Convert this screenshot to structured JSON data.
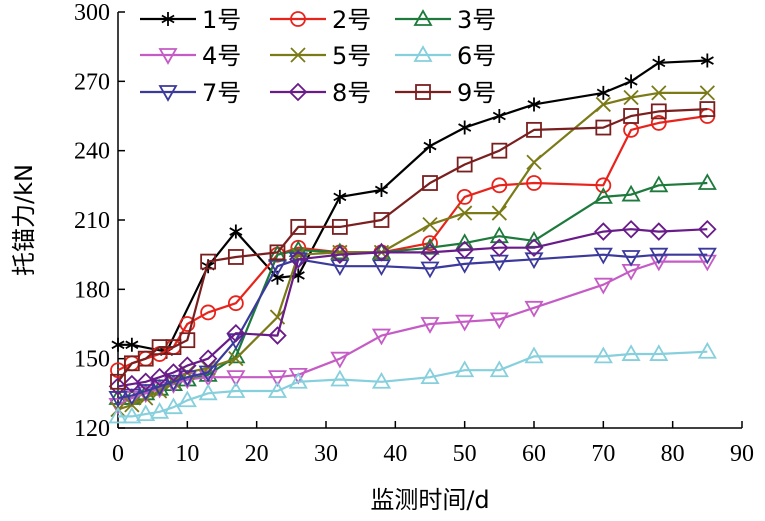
{
  "chart_data": {
    "type": "line",
    "title": "",
    "xlabel": "监测时间/d",
    "ylabel": "托锚力/kN",
    "xlim": [
      0,
      90
    ],
    "ylim": [
      120,
      300
    ],
    "xticks": [
      0,
      10,
      20,
      30,
      40,
      50,
      60,
      70,
      80,
      90
    ],
    "yticks": [
      120,
      150,
      180,
      210,
      240,
      270,
      300
    ],
    "grid": false,
    "legend_position": "top-left",
    "series": [
      {
        "name": "1号",
        "color": "#000000",
        "marker": "asterisk",
        "x": [
          0,
          2,
          7,
          13,
          17,
          23,
          26,
          32,
          38,
          45,
          50,
          55,
          60,
          70,
          74,
          78,
          85
        ],
        "y": [
          156,
          156,
          153,
          190,
          205,
          185,
          186,
          220,
          223,
          242,
          250,
          255,
          260,
          265,
          270,
          278,
          279
        ]
      },
      {
        "name": "2号",
        "color": "#e8231b",
        "marker": "circle",
        "x": [
          0,
          2,
          4,
          6,
          8,
          10,
          13,
          17,
          23,
          26,
          32,
          38,
          45,
          50,
          55,
          60,
          70,
          74,
          78,
          85
        ],
        "y": [
          145,
          148,
          150,
          152,
          155,
          165,
          170,
          174,
          195,
          198,
          196,
          196,
          200,
          220,
          225,
          226,
          225,
          249,
          252,
          255
        ]
      },
      {
        "name": "3号",
        "color": "#1e7a3c",
        "marker": "triangle-up",
        "x": [
          0,
          2,
          4,
          6,
          8,
          10,
          13,
          17,
          23,
          26,
          32,
          38,
          45,
          50,
          55,
          60,
          70,
          74,
          78,
          85
        ],
        "y": [
          133,
          133,
          135,
          137,
          139,
          141,
          143,
          151,
          195,
          197,
          196,
          196,
          198,
          200,
          203,
          201,
          220,
          221,
          225,
          226
        ]
      },
      {
        "name": "4号",
        "color": "#c55bc5",
        "marker": "triangle-down",
        "x": [
          0,
          2,
          4,
          6,
          8,
          10,
          13,
          17,
          23,
          26,
          32,
          38,
          45,
          50,
          55,
          60,
          70,
          74,
          78,
          85
        ],
        "y": [
          130,
          133,
          135,
          137,
          139,
          141,
          142,
          142,
          142,
          143,
          150,
          160,
          165,
          166,
          167,
          172,
          182,
          188,
          192,
          192
        ]
      },
      {
        "name": "5号",
        "color": "#7a7a17",
        "marker": "x",
        "x": [
          0,
          2,
          4,
          6,
          8,
          10,
          13,
          17,
          23,
          26,
          32,
          38,
          45,
          50,
          55,
          60,
          70,
          74,
          78,
          85
        ],
        "y": [
          128,
          130,
          133,
          136,
          140,
          144,
          146,
          150,
          168,
          195,
          196,
          196,
          208,
          213,
          213,
          235,
          260,
          263,
          265,
          265
        ]
      },
      {
        "name": "6号",
        "color": "#86cfdc",
        "marker": "triangle-up",
        "x": [
          0,
          2,
          4,
          6,
          8,
          10,
          13,
          17,
          23,
          26,
          32,
          38,
          45,
          50,
          55,
          60,
          70,
          74,
          78,
          85
        ],
        "y": [
          125,
          125,
          126,
          127,
          129,
          132,
          135,
          136,
          136,
          140,
          141,
          140,
          142,
          145,
          145,
          151,
          151,
          152,
          152,
          153
        ]
      },
      {
        "name": "7号",
        "color": "#3b3a9c",
        "marker": "triangle-down",
        "x": [
          0,
          2,
          4,
          6,
          8,
          10,
          13,
          17,
          23,
          26,
          32,
          38,
          45,
          50,
          55,
          60,
          70,
          74,
          78,
          85
        ],
        "y": [
          133,
          134,
          136,
          138,
          140,
          142,
          144,
          158,
          190,
          193,
          190,
          190,
          189,
          191,
          192,
          193,
          195,
          194,
          195,
          195
        ]
      },
      {
        "name": "8号",
        "color": "#6a1b8a",
        "marker": "diamond",
        "x": [
          0,
          2,
          4,
          6,
          8,
          10,
          13,
          17,
          23,
          26,
          32,
          38,
          45,
          50,
          55,
          60,
          70,
          74,
          78,
          85
        ],
        "y": [
          138,
          139,
          140,
          142,
          144,
          147,
          150,
          161,
          160,
          193,
          195,
          196,
          196,
          197,
          198,
          198,
          205,
          206,
          205,
          206
        ]
      },
      {
        "name": "9号",
        "color": "#7a1f1f",
        "marker": "square",
        "x": [
          0,
          2,
          4,
          6,
          8,
          10,
          13,
          17,
          23,
          26,
          32,
          38,
          45,
          50,
          55,
          60,
          70,
          74,
          78,
          85
        ],
        "y": [
          140,
          148,
          150,
          155,
          155,
          158,
          192,
          194,
          196,
          207,
          207,
          210,
          226,
          234,
          240,
          249,
          250,
          255,
          257,
          258
        ]
      }
    ]
  }
}
